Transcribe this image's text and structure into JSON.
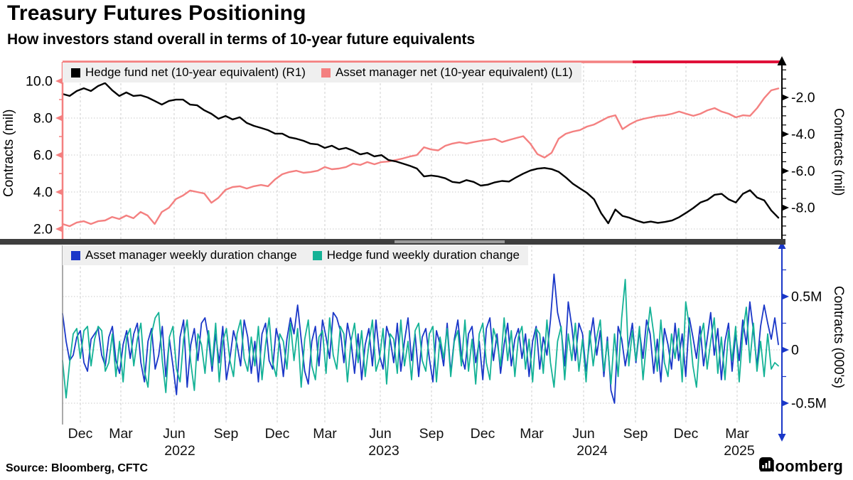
{
  "header": {
    "title": "Treasury Futures Positioning",
    "subtitle": "How investors stand overall in terms of 10-year future equivalents"
  },
  "footer": {
    "source": "Source: Bloomberg, CFTC",
    "brand": "Bloomberg"
  },
  "colors": {
    "salmon": "#f48080",
    "crimson": "#e0113a",
    "black": "#000000",
    "blue": "#1a37c8",
    "teal": "#14b296",
    "grid": "#cdcdcd",
    "legend_bg": "#efefef",
    "separator": "#3e3e3e",
    "separator_handle": "#9b9b9b",
    "gray_axis": "#8f8f8f"
  },
  "chart_data": [
    {
      "panel": "top",
      "type": "line",
      "grid": true,
      "legend_position": "top-left",
      "left_axis": {
        "label": "Contracts (mil)",
        "tick_labels": [
          "10.0",
          "8.0",
          "6.0",
          "4.0",
          "2.0"
        ],
        "tick_values": [
          10,
          8,
          6,
          4,
          2
        ],
        "range": [
          1.46,
          11.04
        ],
        "color": "#f48080"
      },
      "right_axis": {
        "label": "Contracts (mil)",
        "tick_labels": [
          "-2.0",
          "-4.0",
          "-6.0",
          "-8.0"
        ],
        "tick_values": [
          -2,
          -4,
          -6,
          -8
        ],
        "range": [
          -9.7,
          -0.06
        ],
        "color": "#000000"
      },
      "series": [
        {
          "name": "Hedge fund net (10-year equivalent) (R1)",
          "axis": "right",
          "color": "#000000",
          "values": [
            -1.81,
            -1.92,
            -1.65,
            -1.5,
            -1.65,
            -1.38,
            -1.22,
            -1.61,
            -1.92,
            -1.73,
            -1.92,
            -1.88,
            -2.0,
            -2.19,
            -2.39,
            -2.19,
            -2.12,
            -2.12,
            -2.39,
            -2.43,
            -2.7,
            -2.89,
            -3.16,
            -3.01,
            -3.2,
            -3.08,
            -3.39,
            -3.55,
            -3.66,
            -3.78,
            -3.97,
            -3.97,
            -4.17,
            -4.25,
            -4.36,
            -4.52,
            -4.56,
            -4.75,
            -4.63,
            -4.83,
            -4.75,
            -4.9,
            -5.1,
            -5.02,
            -5.21,
            -5.14,
            -5.41,
            -5.48,
            -5.6,
            -5.72,
            -5.87,
            -6.3,
            -6.25,
            -6.3,
            -6.4,
            -6.6,
            -6.65,
            -6.5,
            -6.6,
            -6.8,
            -6.75,
            -6.62,
            -6.55,
            -6.58,
            -6.35,
            -6.15,
            -5.98,
            -5.88,
            -5.84,
            -5.9,
            -6.05,
            -6.35,
            -6.7,
            -6.95,
            -7.2,
            -7.55,
            -8.3,
            -8.85,
            -8.1,
            -8.45,
            -8.55,
            -8.7,
            -8.82,
            -8.76,
            -8.83,
            -8.78,
            -8.7,
            -8.52,
            -8.28,
            -8.02,
            -7.72,
            -7.58,
            -7.3,
            -7.25,
            -7.55,
            -7.72,
            -7.25,
            -7.05,
            -7.45,
            -7.6,
            -8.15,
            -8.55
          ]
        },
        {
          "name": "Asset manager net (10-year equivalent) (L1)",
          "axis": "left",
          "color": "#f48080",
          "values": [
            2.27,
            2.15,
            2.35,
            2.42,
            2.27,
            2.42,
            2.46,
            2.65,
            2.54,
            2.73,
            2.58,
            2.92,
            2.73,
            2.27,
            2.92,
            3.15,
            3.62,
            3.81,
            4.08,
            4.0,
            3.92,
            3.42,
            3.69,
            4.12,
            4.27,
            4.31,
            4.19,
            4.31,
            4.38,
            4.31,
            4.69,
            4.96,
            5.08,
            5.15,
            5.04,
            5.08,
            5.15,
            5.35,
            5.23,
            5.27,
            5.35,
            5.54,
            5.46,
            5.62,
            5.5,
            5.62,
            5.65,
            5.73,
            5.81,
            5.92,
            6.0,
            6.42,
            6.3,
            6.25,
            6.5,
            6.62,
            6.69,
            6.62,
            6.7,
            6.77,
            6.82,
            6.88,
            6.7,
            6.81,
            6.92,
            7.02,
            6.62,
            6.05,
            5.86,
            6.12,
            6.88,
            7.15,
            7.27,
            7.35,
            7.54,
            7.65,
            7.85,
            8.05,
            8.15,
            7.4,
            7.65,
            7.85,
            7.96,
            8.04,
            8.12,
            8.15,
            8.23,
            8.35,
            8.23,
            8.12,
            8.23,
            8.42,
            8.54,
            8.35,
            8.23,
            8.04,
            8.15,
            8.12,
            8.54,
            9.08,
            9.5,
            9.6
          ]
        }
      ]
    },
    {
      "panel": "bottom",
      "type": "line",
      "grid": true,
      "legend_position": "top-left",
      "right_axis": {
        "label": "Contracts (000's)",
        "tick_labels": [
          "0.5M",
          "0",
          "-0.5M"
        ],
        "tick_values": [
          0.5,
          0,
          -0.5
        ],
        "range": [
          -0.7,
          0.98
        ],
        "color": "#1a37c8"
      },
      "x_axis": {
        "months": [
          "Dec",
          "Mar",
          "Jun",
          "Sep",
          "Dec",
          "Mar",
          "Jun",
          "Sep",
          "Dec",
          "Mar",
          "Jun",
          "Sep",
          "Dec",
          "Mar"
        ],
        "tick_x": [
          113,
          170,
          245,
          318,
          390,
          457,
          535,
          607,
          679,
          748,
          821,
          894,
          965,
          1037
        ],
        "years": [
          {
            "label": "2022",
            "x": 253
          },
          {
            "label": "2023",
            "x": 540
          },
          {
            "label": "2024",
            "x": 833
          },
          {
            "label": "2025",
            "x": 1040
          }
        ]
      },
      "series": [
        {
          "name": "Asset manager weekly duration change",
          "axis": "right",
          "color": "#1a37c8",
          "values": [
            0.34,
            0.08,
            -0.1,
            -0.05,
            0.12,
            0.18,
            -0.12,
            -0.2,
            0.1,
            0.15,
            0.2,
            -0.05,
            -0.15,
            0.12,
            0.22,
            -0.1,
            -0.22,
            0.05,
            0.18,
            -0.08,
            0.15,
            0.25,
            -0.12,
            -0.3,
            0.08,
            0.2,
            -0.18,
            -0.05,
            0.22,
            -0.25,
            0.1,
            -0.15,
            -0.42,
            0.12,
            0.28,
            -0.35,
            0.05,
            0.2,
            -0.1,
            0.25,
            0.3,
            0.1,
            -0.2,
            0.15,
            -0.12,
            0.22,
            -0.28,
            -0.08,
            0.18,
            0.05,
            -0.15,
            0.28,
            0.12,
            -0.22,
            0.08,
            -0.3,
            0.15,
            0.25,
            -0.1,
            -0.18,
            0.2,
            0.05,
            -0.25,
            0.1,
            0.3,
            0.15,
            0.42,
            0.1,
            -0.2,
            -0.32,
            0.08,
            0.22,
            -0.15,
            0.28,
            0.12,
            -0.08,
            0.35,
            0.3,
            0.18,
            -0.12,
            0.25,
            0.08,
            -0.22,
            0.15,
            -0.28,
            0.05,
            0.2,
            -0.15,
            0.28,
            -0.05,
            -0.18,
            0.22,
            0.1,
            -0.12,
            0.25,
            -0.2,
            0.08,
            0.3,
            -0.1,
            0.15,
            -0.25,
            0.12,
            0.2,
            -0.08,
            -0.3,
            0.18,
            0.05,
            -0.15,
            0.25,
            -0.22,
            0.1,
            0.28,
            -0.05,
            -0.18,
            0.15,
            0.22,
            -0.12,
            0.08,
            -0.28,
            0.2,
            0.3,
            -0.1,
            0.15,
            -0.22,
            0.05,
            0.25,
            -0.15,
            0.1,
            0.2,
            -0.08,
            0.15,
            -0.25,
            0.08,
            0.22,
            -0.18,
            0.12,
            -0.05,
            0.28,
            0.71,
            0.35,
            0.2,
            -0.15,
            0.45,
            0.22,
            -0.1,
            0.25,
            0.15,
            -0.2,
            0.08,
            0.3,
            -0.05,
            0.18,
            -0.25,
            0.12,
            -0.38,
            -0.5,
            0.22,
            0.1,
            -0.15,
            0.05,
            0.25,
            -0.12,
            0.18,
            -0.08,
            0.28,
            0.15,
            -0.22,
            0.1,
            -0.3,
            0.2,
            0.05,
            -0.18,
            0.25,
            -0.1,
            0.15,
            -0.25,
            0.3,
            0.12,
            -0.08,
            0.22,
            -0.15,
            0.1,
            0.35,
            -0.05,
            0.2,
            -0.28,
            0.08,
            0.25,
            -0.2,
            0.15,
            -0.1,
            0.28,
            0.05,
            0.45,
            0.18,
            -0.15,
            0.22,
            0.42,
            0.25,
            0.1,
            0.3,
            0.05
          ]
        },
        {
          "name": "Hedge fund weekly duration change",
          "axis": "right",
          "color": "#14b296",
          "values": [
            -0.1,
            -0.45,
            -0.12,
            0.15,
            0.2,
            -0.08,
            0.18,
            0.22,
            -0.15,
            0.1,
            0.22,
            0.18,
            -0.2,
            -0.12,
            0.15,
            -0.25,
            0.08,
            -0.3,
            0.12,
            0.2,
            -0.15,
            0.1,
            0.25,
            -0.2,
            -0.35,
            0.15,
            0.3,
            0.35,
            -0.1,
            -0.4,
            0.12,
            0.22,
            -0.18,
            -0.3,
            0.1,
            0.28,
            -0.12,
            -0.38,
            0.15,
            0.05,
            -0.22,
            0.18,
            -0.15,
            0.25,
            -0.3,
            0.08,
            0.2,
            -0.1,
            -0.25,
            0.15,
            0.28,
            -0.08,
            -0.2,
            0.12,
            -0.15,
            0.22,
            -0.28,
            0.05,
            0.3,
            -0.12,
            -0.25,
            0.15,
            0.08,
            -0.18,
            0.25,
            -0.1,
            0.2,
            -0.35,
            0.1,
            0.28,
            -0.15,
            -0.28,
            0.12,
            0.18,
            -0.22,
            0.3,
            -0.05,
            -0.18,
            0.22,
            0.15,
            -0.3,
            0.08,
            0.25,
            -0.12,
            0.18,
            -0.25,
            0.05,
            0.28,
            -0.2,
            -0.08,
            0.2,
            -0.32,
            0.15,
            0.1,
            -0.22,
            0.28,
            -0.15,
            0.08,
            -0.28,
            0.18,
            0.25,
            -0.1,
            -0.2,
            0.15,
            0.22,
            -0.3,
            0.12,
            -0.08,
            0.2,
            -0.25,
            0.08,
            0.18,
            -0.15,
            0.28,
            -0.2,
            0.1,
            -0.32,
            0.15,
            0.25,
            -0.12,
            -0.28,
            0.2,
            0.08,
            -0.15,
            0.3,
            -0.1,
            0.18,
            -0.25,
            0.12,
            0.22,
            -0.18,
            0.1,
            -0.3,
            0.2,
            0.15,
            -0.22,
            0.28,
            -0.12,
            -0.35,
            0.08,
            0.22,
            -0.28,
            0.15,
            -0.1,
            0.25,
            -0.2,
            0.1,
            -0.3,
            0.18,
            -0.15,
            0.12,
            0.28,
            -0.2,
            0.08,
            -0.32,
            0.15,
            -0.25,
            0.3,
            0.66,
            -0.15,
            0.18,
            -0.1,
            0.22,
            -0.28,
            0.08,
            0.4,
            0.15,
            -0.2,
            0.28,
            -0.12,
            -0.25,
            0.15,
            -0.08,
            0.2,
            -0.3,
            0.45,
            0.22,
            -0.15,
            -0.35,
            0.1,
            0.25,
            -0.18,
            0.08,
            0.3,
            -0.22,
            0.12,
            -0.28,
            0.18,
            -0.1,
            0.22,
            -0.3,
            0.15,
            0.4,
            -0.12,
            0.25,
            -0.2,
            0.08,
            -0.25,
            0.15,
            -0.18,
            -0.12,
            -0.15
          ]
        }
      ]
    }
  ]
}
